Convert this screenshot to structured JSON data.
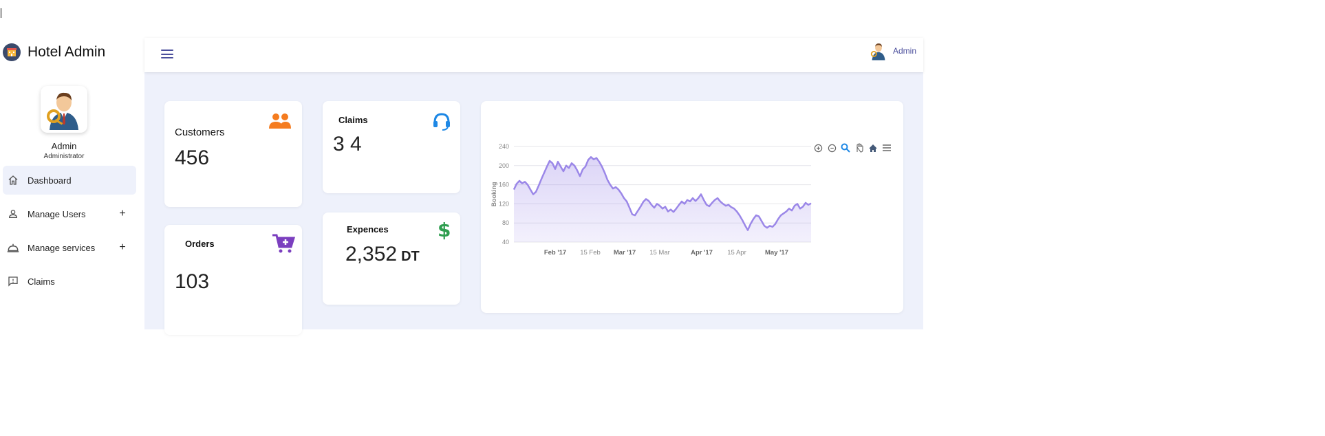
{
  "app": {
    "title": "Hotel Admin"
  },
  "user": {
    "name": "Admin",
    "role": "Administrator"
  },
  "sidebar": {
    "items": [
      {
        "label": "Dashboard",
        "icon": "home-icon",
        "active": true,
        "expandable": false
      },
      {
        "label": "Manage Users",
        "icon": "person-icon",
        "active": false,
        "expandable": true
      },
      {
        "label": "Manage services",
        "icon": "service-bell-icon",
        "active": false,
        "expandable": true
      },
      {
        "label": "Claims",
        "icon": "feedback-icon",
        "active": false,
        "expandable": false
      }
    ],
    "expand_symbol": "+"
  },
  "topbar": {
    "user_name": "Admin"
  },
  "cards": {
    "customers": {
      "title": "Customers",
      "value": "456",
      "icon": "users-icon",
      "color": "#f57c1f"
    },
    "claims": {
      "title": "Claims",
      "value": "3 4",
      "icon": "headset-icon",
      "color": "#1e88e5"
    },
    "orders": {
      "title": "Orders",
      "value": "103",
      "icon": "cart-add-icon",
      "color": "#7b3fbf"
    },
    "expences": {
      "title": "Expences",
      "value": "2,352",
      "unit": "DT",
      "icon": "dollar-icon",
      "color": "#2e9e4f"
    }
  },
  "chart_data": {
    "type": "area",
    "ylabel": "Booking",
    "xlabel": "",
    "ylim": [
      40,
      240
    ],
    "yticks": [
      40,
      80,
      120,
      160,
      200,
      240
    ],
    "xticks": [
      {
        "label": "Feb '17",
        "bold": true
      },
      {
        "label": "15 Feb",
        "bold": false
      },
      {
        "label": "Mar '17",
        "bold": true
      },
      {
        "label": "15 Mar",
        "bold": false
      },
      {
        "label": "Apr '17",
        "bold": true
      },
      {
        "label": "15 Apr",
        "bold": false
      },
      {
        "label": "May '17",
        "bold": true
      }
    ],
    "grid": true,
    "color": "#9b87e8",
    "values": [
      150,
      162,
      168,
      163,
      166,
      160,
      150,
      140,
      145,
      158,
      172,
      185,
      198,
      210,
      205,
      193,
      208,
      198,
      188,
      200,
      195,
      205,
      200,
      190,
      178,
      192,
      198,
      212,
      218,
      213,
      216,
      208,
      198,
      185,
      170,
      160,
      152,
      155,
      150,
      142,
      132,
      125,
      112,
      98,
      96,
      105,
      114,
      124,
      130,
      126,
      118,
      112,
      120,
      116,
      110,
      114,
      104,
      108,
      103,
      110,
      118,
      125,
      120,
      128,
      125,
      132,
      126,
      132,
      140,
      128,
      118,
      115,
      122,
      128,
      132,
      125,
      120,
      116,
      118,
      113,
      110,
      104,
      96,
      86,
      75,
      65,
      78,
      88,
      96,
      94,
      84,
      74,
      70,
      74,
      72,
      78,
      88,
      96,
      100,
      104,
      110,
      106,
      116,
      120,
      110,
      114,
      122,
      118,
      121
    ]
  },
  "chart_tools": [
    "zoom-in-icon",
    "zoom-out-icon",
    "search-zoom-icon",
    "pan-hand-icon",
    "reset-home-icon",
    "chart-menu-icon"
  ]
}
